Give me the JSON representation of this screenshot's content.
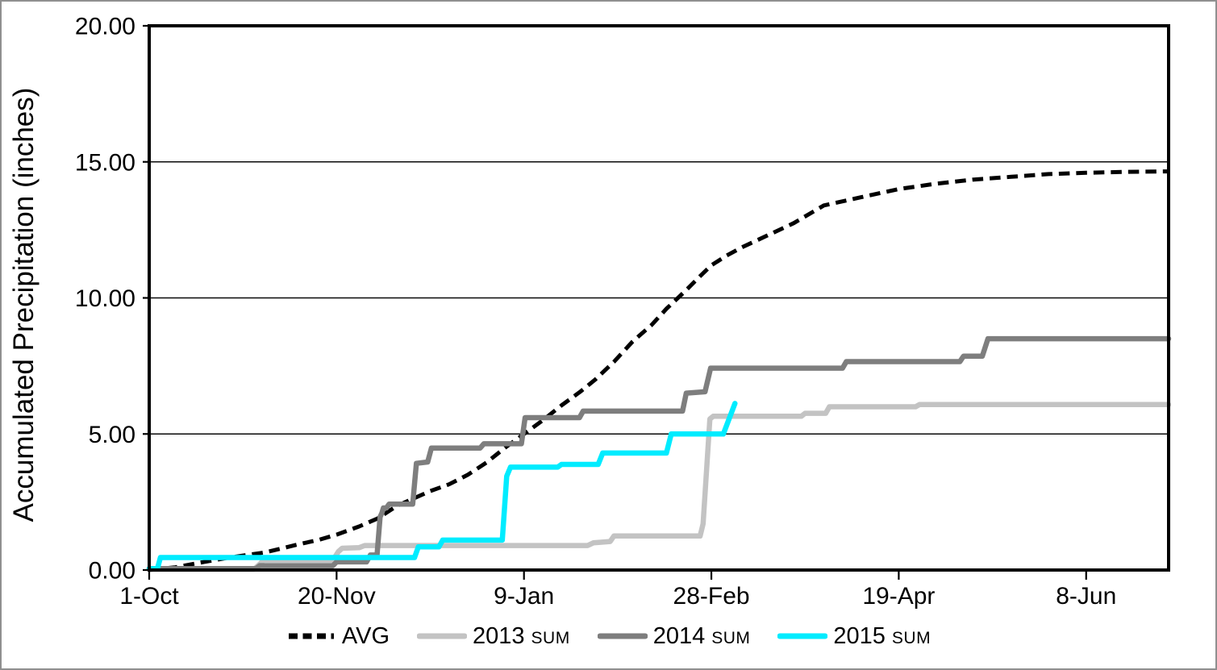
{
  "chart_data": {
    "type": "line",
    "title": "",
    "xlabel": "",
    "ylabel": "Accumulated Precipitation (inches)",
    "x_unit": "days since 1-Oct",
    "xlim": [
      0,
      272
    ],
    "ylim": [
      0,
      20
    ],
    "grid": "horizontal gridlines at 5.00 intervals",
    "legend_position": "bottom",
    "frame_color": "#000000",
    "yticks": [
      {
        "v": 0,
        "label": "0.00"
      },
      {
        "v": 5,
        "label": "5.00"
      },
      {
        "v": 10,
        "label": "10.00"
      },
      {
        "v": 15,
        "label": "15.00"
      },
      {
        "v": 20,
        "label": "20.00"
      }
    ],
    "xticks": [
      {
        "v": 0,
        "label": "1-Oct"
      },
      {
        "v": 50,
        "label": "20-Nov"
      },
      {
        "v": 100,
        "label": "9-Jan"
      },
      {
        "v": 150,
        "label": "28-Feb"
      },
      {
        "v": 200,
        "label": "19-Apr"
      },
      {
        "v": 250,
        "label": "8-Jun"
      }
    ],
    "series": [
      {
        "id": "avg",
        "legend_label": "AVG",
        "legend_suffix": "",
        "color": "#000000",
        "dashed": true,
        "points": [
          [
            0,
            0
          ],
          [
            7,
            0.1
          ],
          [
            14,
            0.28
          ],
          [
            21,
            0.45
          ],
          [
            31,
            0.65
          ],
          [
            40,
            0.95
          ],
          [
            45,
            1.1
          ],
          [
            50,
            1.3
          ],
          [
            56,
            1.6
          ],
          [
            61,
            1.9
          ],
          [
            66,
            2.35
          ],
          [
            70,
            2.6
          ],
          [
            75,
            2.9
          ],
          [
            80,
            3.15
          ],
          [
            85,
            3.5
          ],
          [
            90,
            3.95
          ],
          [
            95,
            4.5
          ],
          [
            100,
            5.0
          ],
          [
            105,
            5.5
          ],
          [
            110,
            6.05
          ],
          [
            115,
            6.55
          ],
          [
            119,
            7.0
          ],
          [
            124,
            7.65
          ],
          [
            129,
            8.4
          ],
          [
            134,
            9.0
          ],
          [
            138,
            9.6
          ],
          [
            143,
            10.25
          ],
          [
            147,
            10.8
          ],
          [
            150,
            11.2
          ],
          [
            154,
            11.55
          ],
          [
            158,
            11.85
          ],
          [
            165,
            12.3
          ],
          [
            172,
            12.75
          ],
          [
            180,
            13.4
          ],
          [
            190,
            13.7
          ],
          [
            200,
            14.0
          ],
          [
            210,
            14.2
          ],
          [
            220,
            14.35
          ],
          [
            230,
            14.45
          ],
          [
            240,
            14.55
          ],
          [
            250,
            14.6
          ],
          [
            260,
            14.63
          ],
          [
            272,
            14.65
          ]
        ]
      },
      {
        "id": "2013-sum",
        "legend_label": "2013",
        "legend_suffix": "SUM",
        "color": "#c3c3c3",
        "dashed": false,
        "points": [
          [
            0,
            0.03
          ],
          [
            28,
            0.03
          ],
          [
            29.5,
            0.22
          ],
          [
            30.5,
            0.36
          ],
          [
            49,
            0.36
          ],
          [
            50.5,
            0.68
          ],
          [
            51.5,
            0.8
          ],
          [
            56,
            0.82
          ],
          [
            57.5,
            0.9
          ],
          [
            117,
            0.9
          ],
          [
            118.5,
            1.0
          ],
          [
            123,
            1.05
          ],
          [
            124,
            1.25
          ],
          [
            147,
            1.25
          ],
          [
            147.8,
            1.7
          ],
          [
            149.6,
            5.55
          ],
          [
            150.5,
            5.65
          ],
          [
            174,
            5.65
          ],
          [
            175,
            5.76
          ],
          [
            180.5,
            5.76
          ],
          [
            181.5,
            6.0
          ],
          [
            204.5,
            6.0
          ],
          [
            205.5,
            6.08
          ],
          [
            272,
            6.08
          ]
        ]
      },
      {
        "id": "2014-sum",
        "legend_label": "2014",
        "legend_suffix": "SUM",
        "color": "#7e7e7e",
        "dashed": false,
        "points": [
          [
            0,
            0.05
          ],
          [
            28.5,
            0.05
          ],
          [
            29.5,
            0.16
          ],
          [
            49,
            0.16
          ],
          [
            50,
            0.3
          ],
          [
            58,
            0.3
          ],
          [
            59,
            0.55
          ],
          [
            60.8,
            0.55
          ],
          [
            61.6,
            1.95
          ],
          [
            62.1,
            2.1
          ],
          [
            62.5,
            2.28
          ],
          [
            63.3,
            2.28
          ],
          [
            64,
            2.42
          ],
          [
            70.3,
            2.42
          ],
          [
            71.3,
            3.92
          ],
          [
            74.3,
            3.97
          ],
          [
            75.3,
            4.48
          ],
          [
            88.3,
            4.48
          ],
          [
            89.3,
            4.64
          ],
          [
            99.3,
            4.64
          ],
          [
            100.3,
            5.6
          ],
          [
            114.8,
            5.6
          ],
          [
            115.8,
            5.84
          ],
          [
            142.3,
            5.84
          ],
          [
            143.3,
            6.5
          ],
          [
            148.3,
            6.55
          ],
          [
            149.8,
            7.42
          ],
          [
            185,
            7.42
          ],
          [
            186,
            7.66
          ],
          [
            216.3,
            7.66
          ],
          [
            217.3,
            7.86
          ],
          [
            222.3,
            7.86
          ],
          [
            223.8,
            8.5
          ],
          [
            272,
            8.5
          ]
        ]
      },
      {
        "id": "2015-sum",
        "legend_label": "2015",
        "legend_suffix": "SUM",
        "color": "#00ecff",
        "dashed": false,
        "points": [
          [
            0,
            0.05
          ],
          [
            2.2,
            0.05
          ],
          [
            3,
            0.46
          ],
          [
            70.8,
            0.46
          ],
          [
            71.8,
            0.85
          ],
          [
            77.3,
            0.85
          ],
          [
            78.3,
            1.1
          ],
          [
            94.2,
            1.1
          ],
          [
            95.4,
            3.45
          ],
          [
            96.4,
            3.78
          ],
          [
            109,
            3.78
          ],
          [
            110,
            3.88
          ],
          [
            119.8,
            3.88
          ],
          [
            121,
            4.3
          ],
          [
            138,
            4.3
          ],
          [
            139.3,
            5.0
          ],
          [
            153.2,
            5.0
          ],
          [
            156.3,
            6.12
          ]
        ]
      }
    ]
  }
}
